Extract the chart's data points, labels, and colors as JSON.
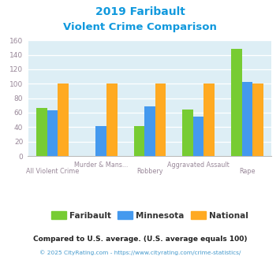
{
  "title_line1": "2019 Faribault",
  "title_line2": "Violent Crime Comparison",
  "categories": [
    "All Violent Crime",
    "Murder & Mans...",
    "Robbery",
    "Aggravated Assault",
    "Rape"
  ],
  "faribault": [
    67,
    0,
    41,
    64,
    148
  ],
  "minnesota": [
    63,
    41,
    69,
    55,
    102
  ],
  "national": [
    100,
    100,
    100,
    100,
    100
  ],
  "color_faribault": "#77cc33",
  "color_minnesota": "#4499ee",
  "color_national": "#ffaa22",
  "ylim": [
    0,
    160
  ],
  "yticks": [
    0,
    20,
    40,
    60,
    80,
    100,
    120,
    140,
    160
  ],
  "legend_labels": [
    "Faribault",
    "Minnesota",
    "National"
  ],
  "footnote1": "Compared to U.S. average. (U.S. average equals 100)",
  "footnote2": "© 2025 CityRating.com - https://www.cityrating.com/crime-statistics/",
  "title_color": "#1199dd",
  "tick_label_color": "#998899",
  "footnote1_color": "#222222",
  "footnote2_color": "#4499cc",
  "bg_color": "#ddeef5",
  "bar_width": 0.22
}
